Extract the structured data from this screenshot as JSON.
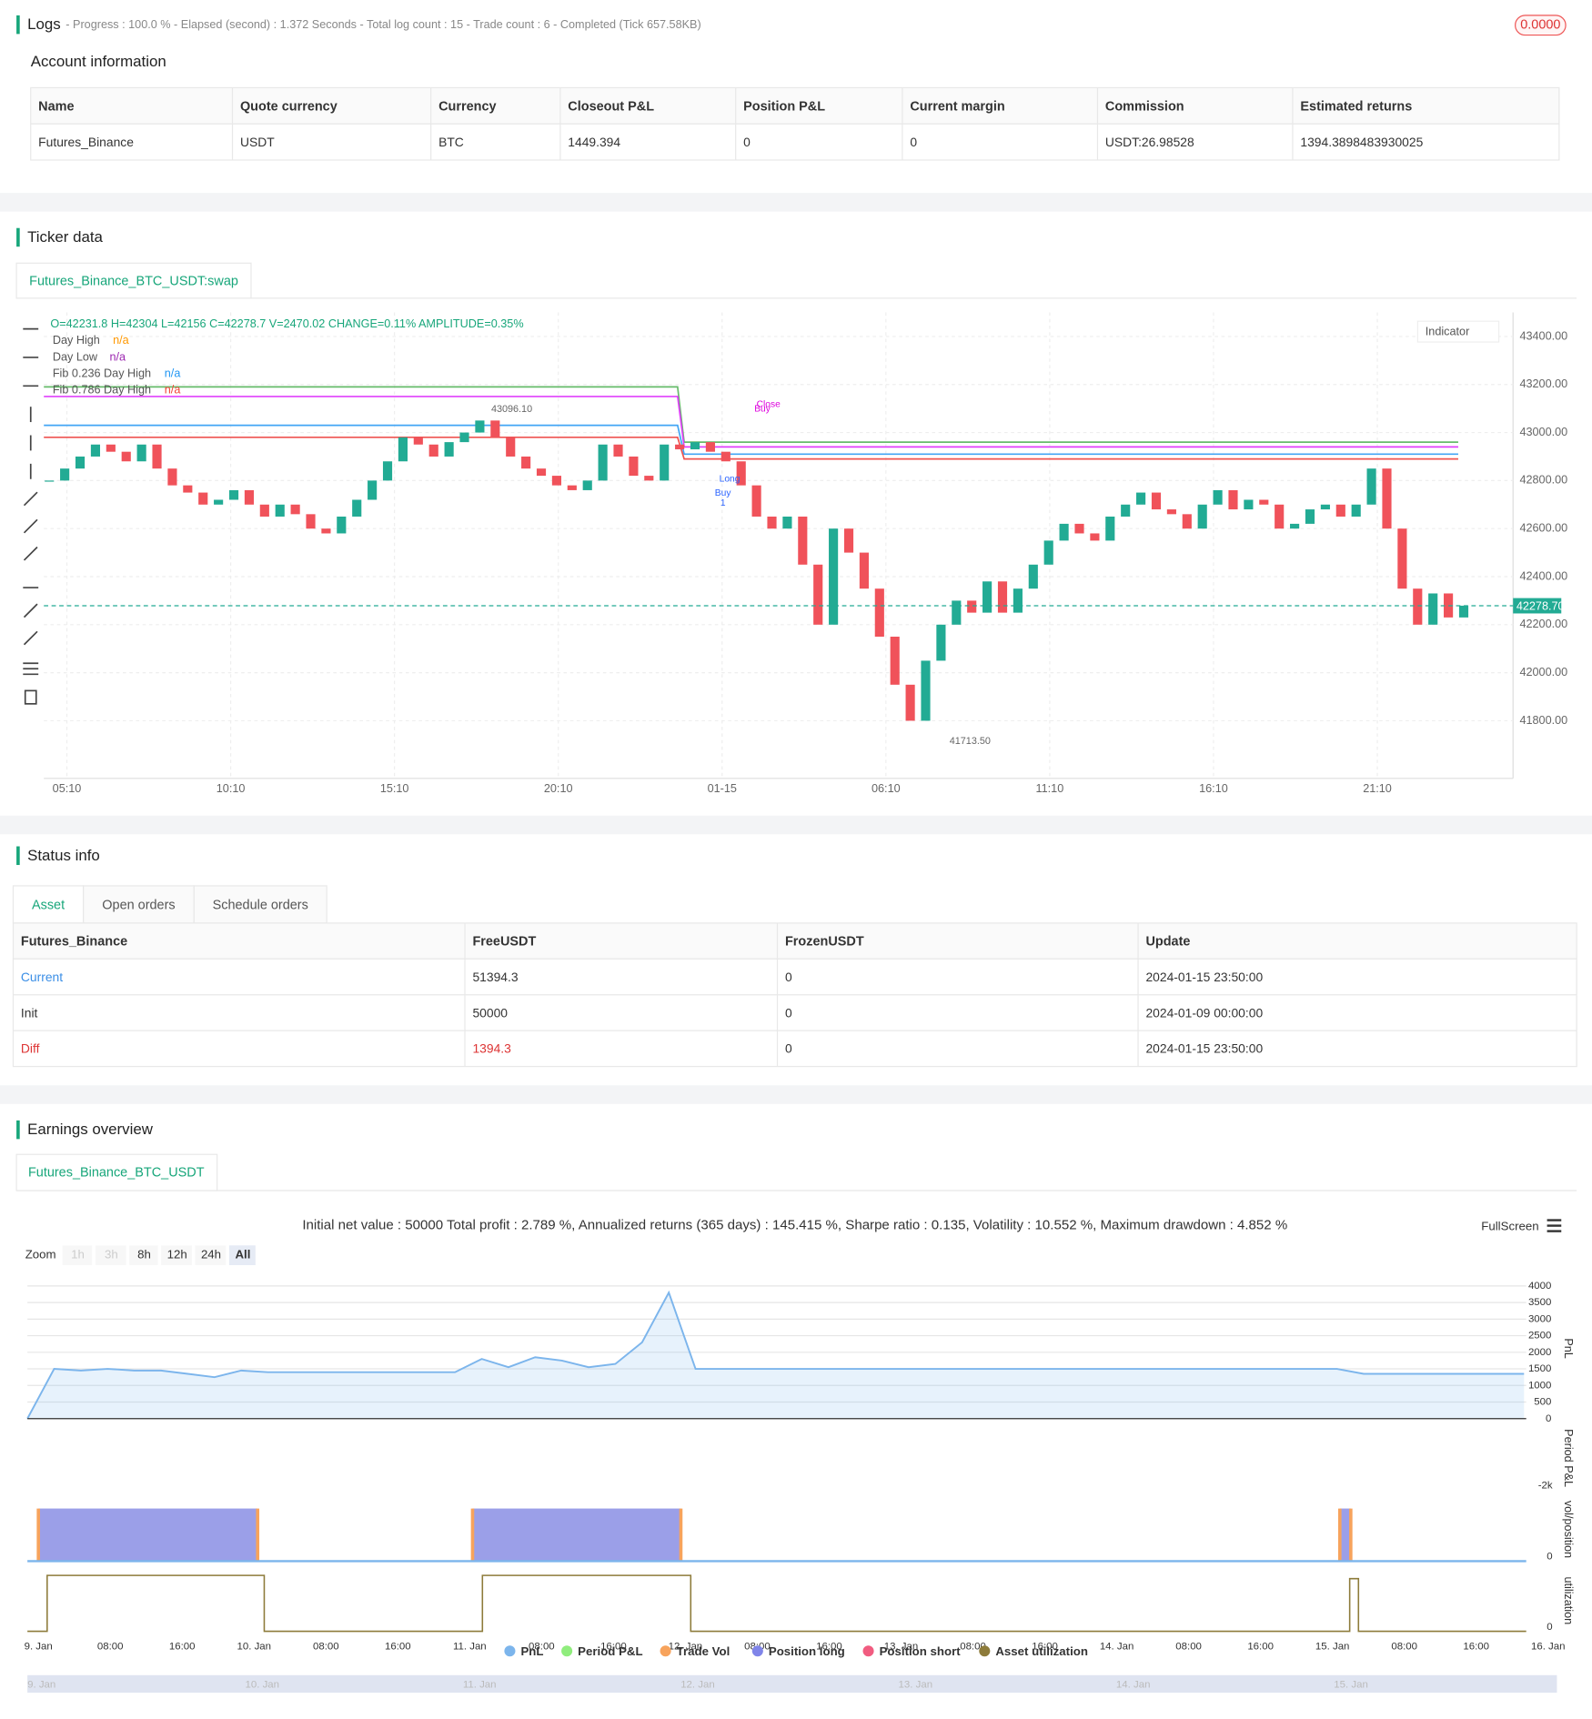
{
  "logs": {
    "title": "Logs",
    "summary": "- Progress : 100.0 % - Elapsed (second) : 1.372 Seconds - Total log count : 15 - Trade count : 6 - Completed (Tick 657.58KB)",
    "badge": "0.0000"
  },
  "account": {
    "title": "Account information",
    "columns": [
      "Name",
      "Quote currency",
      "Currency",
      "Closeout P&L",
      "Position P&L",
      "Current margin",
      "Commission",
      "Estimated returns"
    ],
    "rows": [
      [
        "Futures_Binance",
        "USDT",
        "BTC",
        "1449.394",
        "0",
        "0",
        "USDT:26.98528",
        "1394.3898483930025"
      ]
    ]
  },
  "ticker": {
    "title": "Ticker data",
    "tab": "Futures_Binance_BTC_USDT:swap",
    "ohlc": "O=42231.8 H=42304 L=42156 C=42278.7 V=2470.02 CHANGE=0.11% AMPLITUDE=0.35%",
    "legend": [
      {
        "name": "Day High",
        "value": "n/a",
        "color": "#ff9800"
      },
      {
        "name": "Day Low",
        "value": "n/a",
        "color": "#9c27b0"
      },
      {
        "name": "Fib 0.236 Day High",
        "value": "n/a",
        "color": "#2196f3"
      },
      {
        "name": "Fib 0.786 Day High",
        "value": "n/a",
        "color": "#f44336"
      }
    ],
    "indicator": "Indicator",
    "ylim": [
      41560,
      43500
    ],
    "yticks": [
      {
        "value": 43400,
        "label": "43400.00"
      },
      {
        "value": 43200,
        "label": "43200.00"
      },
      {
        "value": 43000,
        "label": "43000.00"
      },
      {
        "value": 42800,
        "label": "42800.00"
      },
      {
        "value": 42600,
        "label": "42600.00"
      },
      {
        "value": 42400,
        "label": "42400.00"
      },
      {
        "value": 42200,
        "label": "42200.00"
      },
      {
        "value": 42000,
        "label": "42000.00"
      },
      {
        "value": 41800,
        "label": "41800.00"
      }
    ],
    "xticks": [
      "05:10",
      "10:10",
      "15:10",
      "20:10",
      "01-15",
      "06:10",
      "11:10",
      "16:10",
      "21:10"
    ],
    "last_price": {
      "value": 42278.7,
      "label": "42278.70"
    },
    "high_mark": {
      "value": 43096.1,
      "label": "43096.10"
    },
    "low_mark": {
      "value": 41713.5,
      "label": "41713.50"
    },
    "closes": [
      42800,
      42850,
      42900,
      42950,
      42920,
      42880,
      42950,
      42850,
      42780,
      42750,
      42700,
      42720,
      42760,
      42700,
      42650,
      42700,
      42660,
      42600,
      42580,
      42650,
      42720,
      42800,
      42880,
      42980,
      42950,
      42900,
      42960,
      43000,
      43050,
      42980,
      42900,
      42850,
      42820,
      42780,
      42760,
      42800,
      42950,
      42900,
      42820,
      42800,
      42950,
      42930,
      42960,
      42920,
      42880,
      42780,
      42650,
      42600,
      42650,
      42450,
      42200,
      42600,
      42500,
      42350,
      42150,
      41950,
      41800,
      42050,
      42200,
      42300,
      42250,
      42380,
      42250,
      42350,
      42450,
      42550,
      42620,
      42580,
      42550,
      42650,
      42700,
      42750,
      42680,
      42660,
      42600,
      42700,
      42760,
      42680,
      42720,
      42700,
      42600,
      42620,
      42680,
      42700,
      42650,
      42700,
      42850,
      42600,
      42350,
      42200,
      42330,
      42230,
      42279
    ],
    "up_color": "#22ab94",
    "down_color": "#f0525a",
    "levels": [
      {
        "color": "#66bb6a",
        "values": [
          43190,
          42960
        ]
      },
      {
        "color": "#e040fb",
        "values": [
          43150,
          42940
        ]
      },
      {
        "color": "#42a5f5",
        "values": [
          43030,
          42910
        ]
      },
      {
        "color": "#ef5350",
        "values": [
          42980,
          42890
        ]
      }
    ],
    "trade_labels": [
      "Close",
      "Buy",
      "Long",
      "Buy",
      "1"
    ]
  },
  "status": {
    "title": "Status info",
    "tabs": [
      "Asset",
      "Open orders",
      "Schedule orders"
    ],
    "columns": [
      "Futures_Binance",
      "FreeUSDT",
      "FrozenUSDT",
      "Update"
    ],
    "rows": [
      [
        "Current",
        "51394.3",
        "0",
        "2024-01-15 23:50:00"
      ],
      [
        "Init",
        "50000",
        "0",
        "2024-01-09 00:00:00"
      ],
      [
        "Diff",
        "1394.3",
        "0",
        "2024-01-15 23:50:00"
      ]
    ]
  },
  "earnings": {
    "title": "Earnings overview",
    "tab": "Futures_Binance_BTC_USDT",
    "summary": "Initial net value : 50000 Total profit : 2.789 %, Annualized returns (365 days) : 145.415 %, Sharpe ratio : 0.135, Volatility : 10.552 %, Maximum drawdown : 4.852 %",
    "fullscreen": "FullScreen",
    "zoom": {
      "label": "Zoom",
      "buttons": [
        "1h",
        "3h",
        "8h",
        "12h",
        "24h",
        "All"
      ]
    },
    "pnl": {
      "color": "#7cb5ec",
      "ylim": [
        0,
        4000
      ],
      "yticks": [
        0,
        500,
        1000,
        1500,
        2000,
        2500,
        3000,
        3500,
        4000
      ],
      "values": [
        0,
        1500,
        1450,
        1500,
        1450,
        1450,
        1350,
        1250,
        1450,
        1400,
        1400,
        1400,
        1400,
        1400,
        1400,
        1400,
        1400,
        1800,
        1550,
        1850,
        1750,
        1550,
        1650,
        2300,
        3800,
        1500,
        1500,
        1500,
        1500,
        1500,
        1500,
        1500,
        1500,
        1500,
        1500,
        1500,
        1500,
        1500,
        1500,
        1500,
        1500,
        1500,
        1500,
        1500,
        1500,
        1500,
        1500,
        1500,
        1500,
        1500,
        1350,
        1350,
        1350,
        1350,
        1350,
        1350,
        1350
      ]
    },
    "axis_titles": [
      "PnL",
      "Period P&L",
      "vol/position",
      "utilization"
    ],
    "period_tick": "-2k",
    "zero_tick": "0",
    "legend": [
      {
        "name": "PnL",
        "color": "#7cb5ec"
      },
      {
        "name": "Period P&L",
        "color": "#90ed7d"
      },
      {
        "name": "Trade Vol",
        "color": "#f7a35c"
      },
      {
        "name": "Position long",
        "color": "#8085e9"
      },
      {
        "name": "Position short",
        "color": "#f15c80"
      },
      {
        "name": "Asset utilization",
        "color": "#8d7b3a"
      }
    ],
    "xticks": [
      "9. Jan",
      "08:00",
      "16:00",
      "10. Jan",
      "08:00",
      "16:00",
      "11. Jan",
      "08:00",
      "16:00",
      "12. Jan",
      "08:00",
      "16:00",
      "13. Jan",
      "08:00",
      "16:00",
      "14. Jan",
      "08:00",
      "16:00",
      "15. Jan",
      "08:00",
      "16:00",
      "16. Jan"
    ],
    "navigator": [
      "9. Jan",
      "10. Jan",
      "11. Jan",
      "12. Jan",
      "13. Jan",
      "14. Jan",
      "15. Jan"
    ]
  }
}
